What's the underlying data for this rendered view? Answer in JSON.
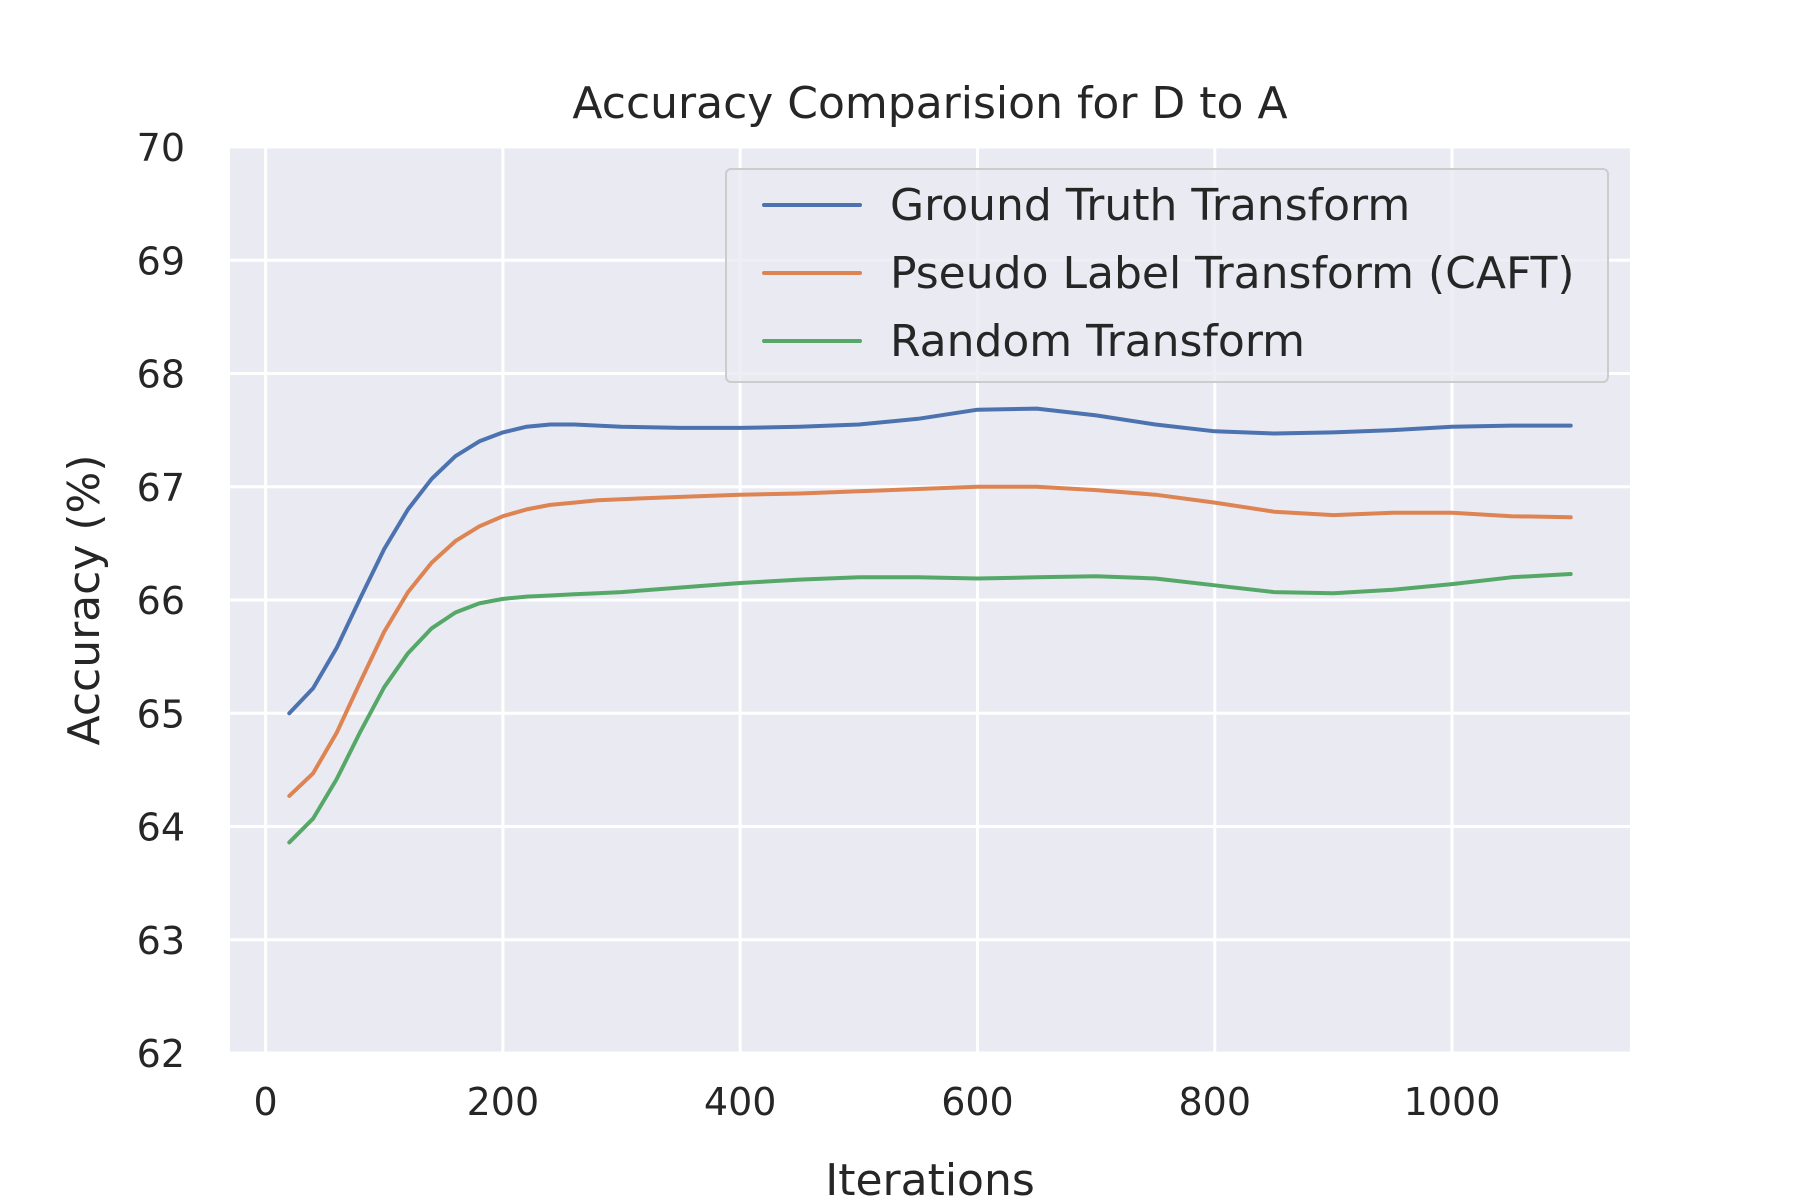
{
  "chart_data": {
    "type": "line",
    "title": "Accuracy Comparision for D to A",
    "xlabel": "Iterations",
    "ylabel": "Accuracy (%)",
    "xlim": [
      -30,
      1150
    ],
    "ylim": [
      62,
      70
    ],
    "xticks": [
      0,
      200,
      400,
      600,
      800,
      1000
    ],
    "yticks": [
      62,
      63,
      64,
      65,
      66,
      67,
      68,
      69,
      70
    ],
    "grid": true,
    "legend_position": "top-right",
    "x": [
      20,
      40,
      60,
      80,
      100,
      120,
      140,
      160,
      180,
      200,
      220,
      240,
      260,
      280,
      300,
      350,
      400,
      450,
      500,
      550,
      600,
      650,
      700,
      750,
      800,
      850,
      900,
      950,
      1000,
      1050,
      1100
    ],
    "series": [
      {
        "name": "Ground Truth Transform",
        "color": "#4c72b0",
        "values": [
          65.0,
          65.22,
          65.58,
          66.02,
          66.45,
          66.8,
          67.07,
          67.27,
          67.4,
          67.48,
          67.53,
          67.55,
          67.55,
          67.54,
          67.53,
          67.52,
          67.52,
          67.53,
          67.55,
          67.6,
          67.68,
          67.69,
          67.63,
          67.55,
          67.49,
          67.47,
          67.48,
          67.5,
          67.53,
          67.54,
          67.54
        ]
      },
      {
        "name": "Pseudo Label Transform (CAFT)",
        "color": "#dd8452",
        "values": [
          64.27,
          64.47,
          64.83,
          65.28,
          65.72,
          66.07,
          66.33,
          66.52,
          66.65,
          66.74,
          66.8,
          66.84,
          66.86,
          66.88,
          66.89,
          66.91,
          66.93,
          66.94,
          66.96,
          66.98,
          67.0,
          67.0,
          66.97,
          66.93,
          66.86,
          66.78,
          66.75,
          66.77,
          66.77,
          66.74,
          66.73
        ]
      },
      {
        "name": "Random Transform",
        "color": "#55a868",
        "values": [
          63.86,
          64.07,
          64.42,
          64.84,
          65.23,
          65.53,
          65.75,
          65.89,
          65.97,
          66.01,
          66.03,
          66.04,
          66.05,
          66.06,
          66.07,
          66.11,
          66.15,
          66.18,
          66.2,
          66.2,
          66.19,
          66.2,
          66.21,
          66.19,
          66.13,
          66.07,
          66.06,
          66.09,
          66.14,
          66.2,
          66.23
        ]
      }
    ]
  }
}
